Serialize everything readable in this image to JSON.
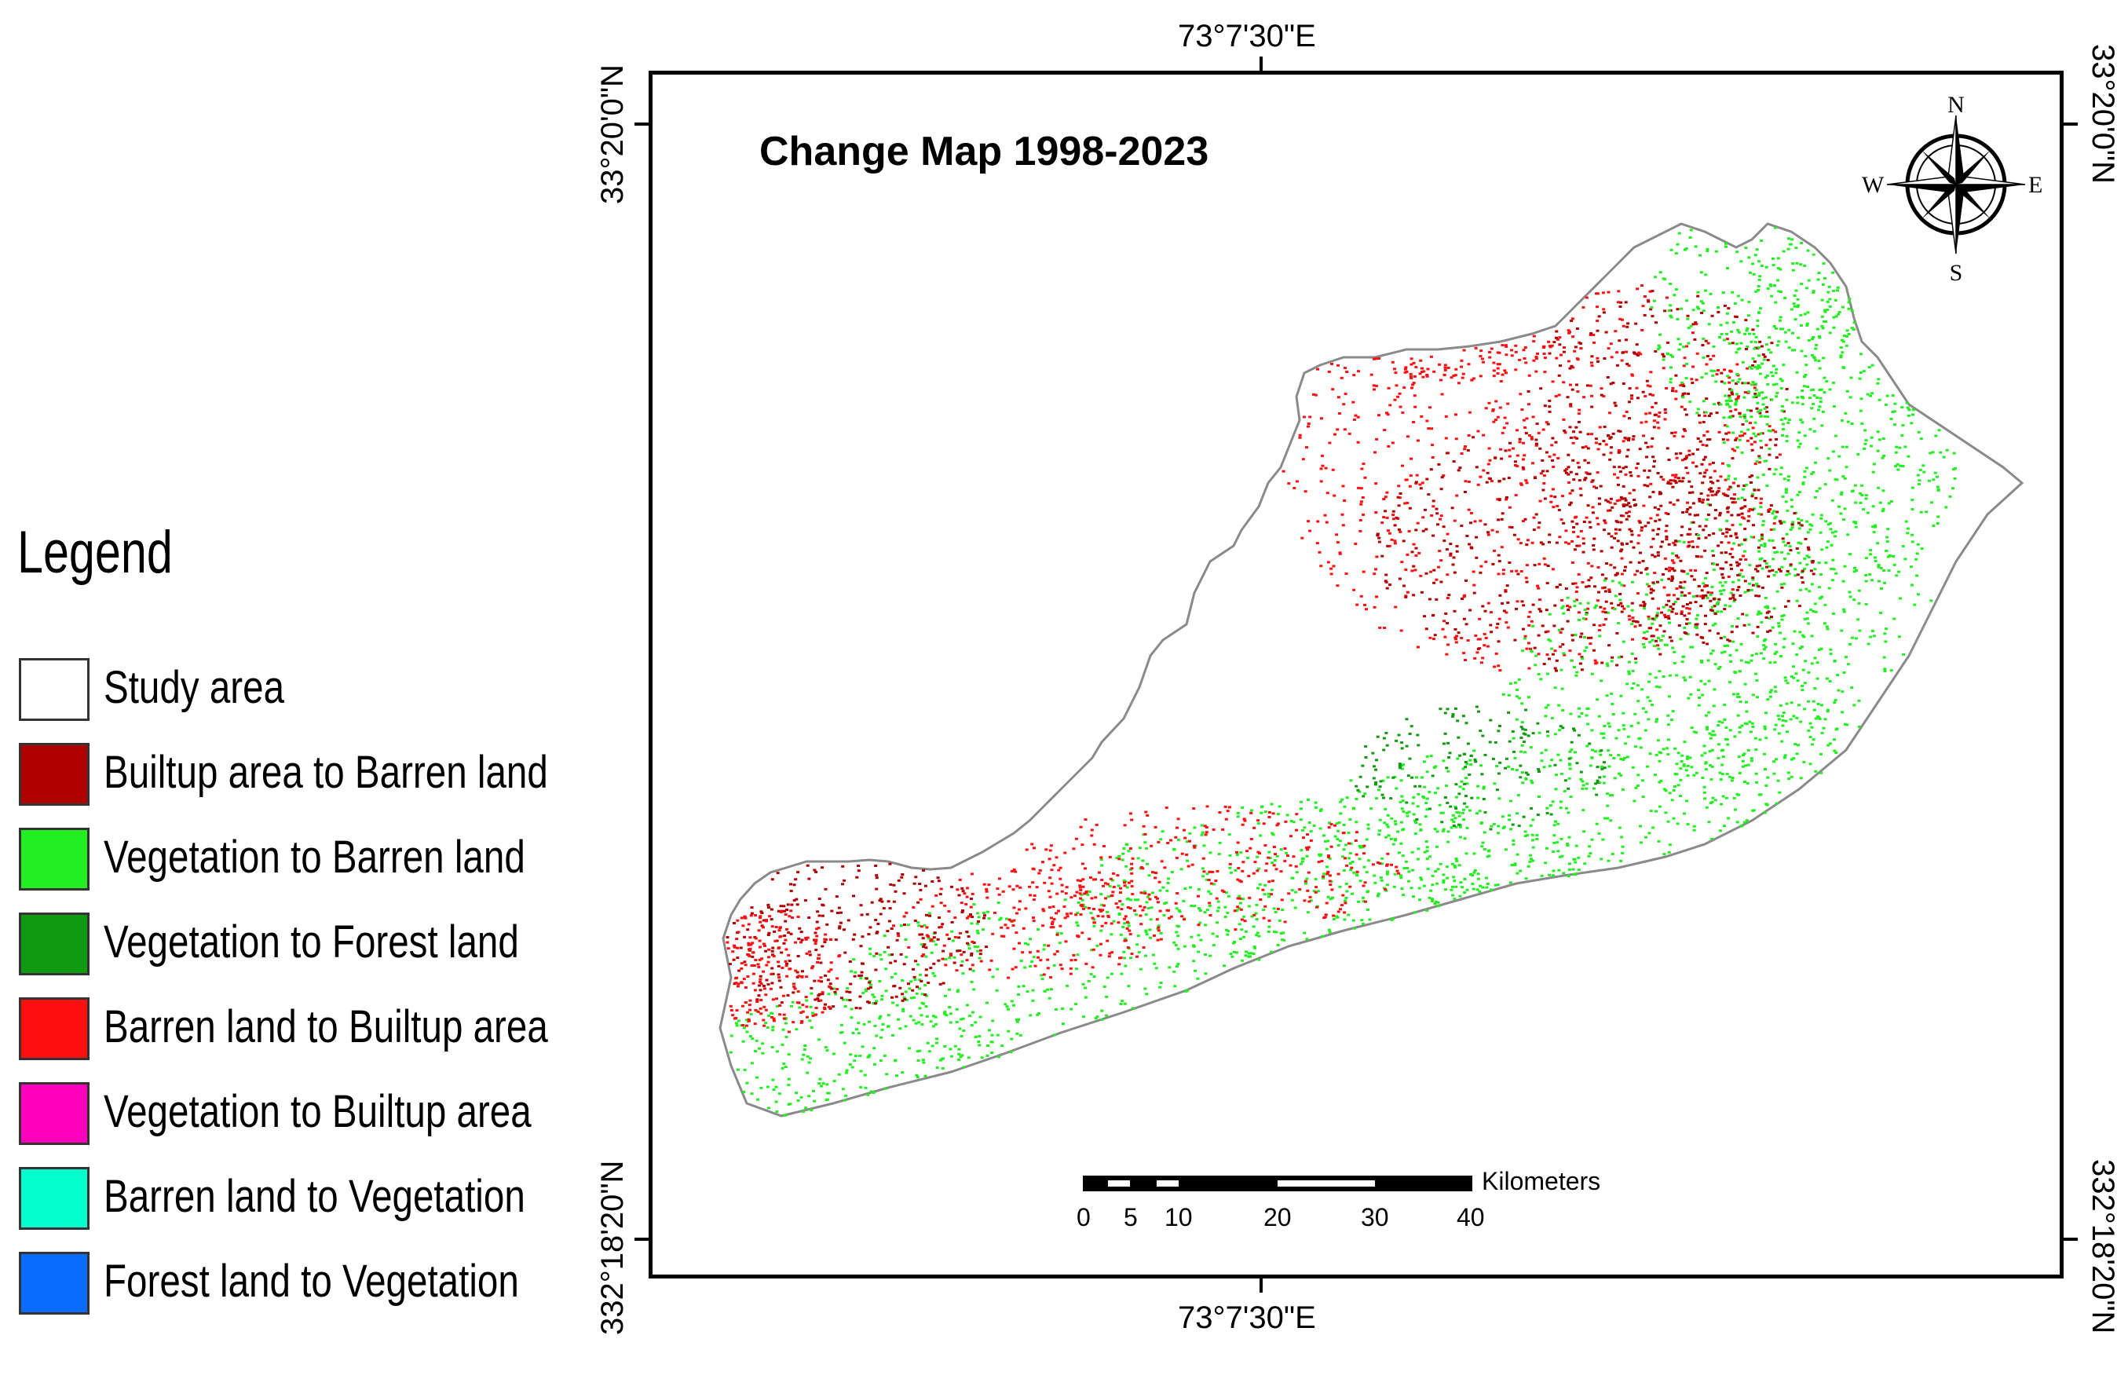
{
  "map": {
    "title": "Change Map 1998-2023",
    "coords": {
      "top_lon": "73°7'30\"E",
      "bottom_lon": "73°7'30\"E",
      "left_top_lat": "33°20'0\"N",
      "left_bottom_lat": "332°18'20\"N",
      "right_top_lat": "33°20'0\"N",
      "right_bottom_lat": "332°18'20\"N"
    },
    "compass": {
      "n": "N",
      "s": "S",
      "e": "E",
      "w": "W"
    },
    "scale_bar": {
      "unit": "Kilometers",
      "ticks": [
        "0",
        "5",
        "10",
        "20",
        "30",
        "40"
      ]
    }
  },
  "legend": {
    "title": "Legend",
    "items": [
      {
        "label": "Study area",
        "color": "#ffffff"
      },
      {
        "label": "Builtup area to Barren land",
        "color": "#b00000"
      },
      {
        "label": "Vegetation to Barren land",
        "color": "#22ee22"
      },
      {
        "label": "Vegetation to Forest land",
        "color": "#119911"
      },
      {
        "label": "Barren land to Builtup area",
        "color": "#ff0f0f"
      },
      {
        "label": "Vegetation to Builtup area",
        "color": "#ff00bb"
      },
      {
        "label": "Barren land to Vegetation",
        "color": "#00ffcc"
      },
      {
        "label": "Forest land to Vegetation",
        "color": "#0a6cff"
      }
    ]
  }
}
